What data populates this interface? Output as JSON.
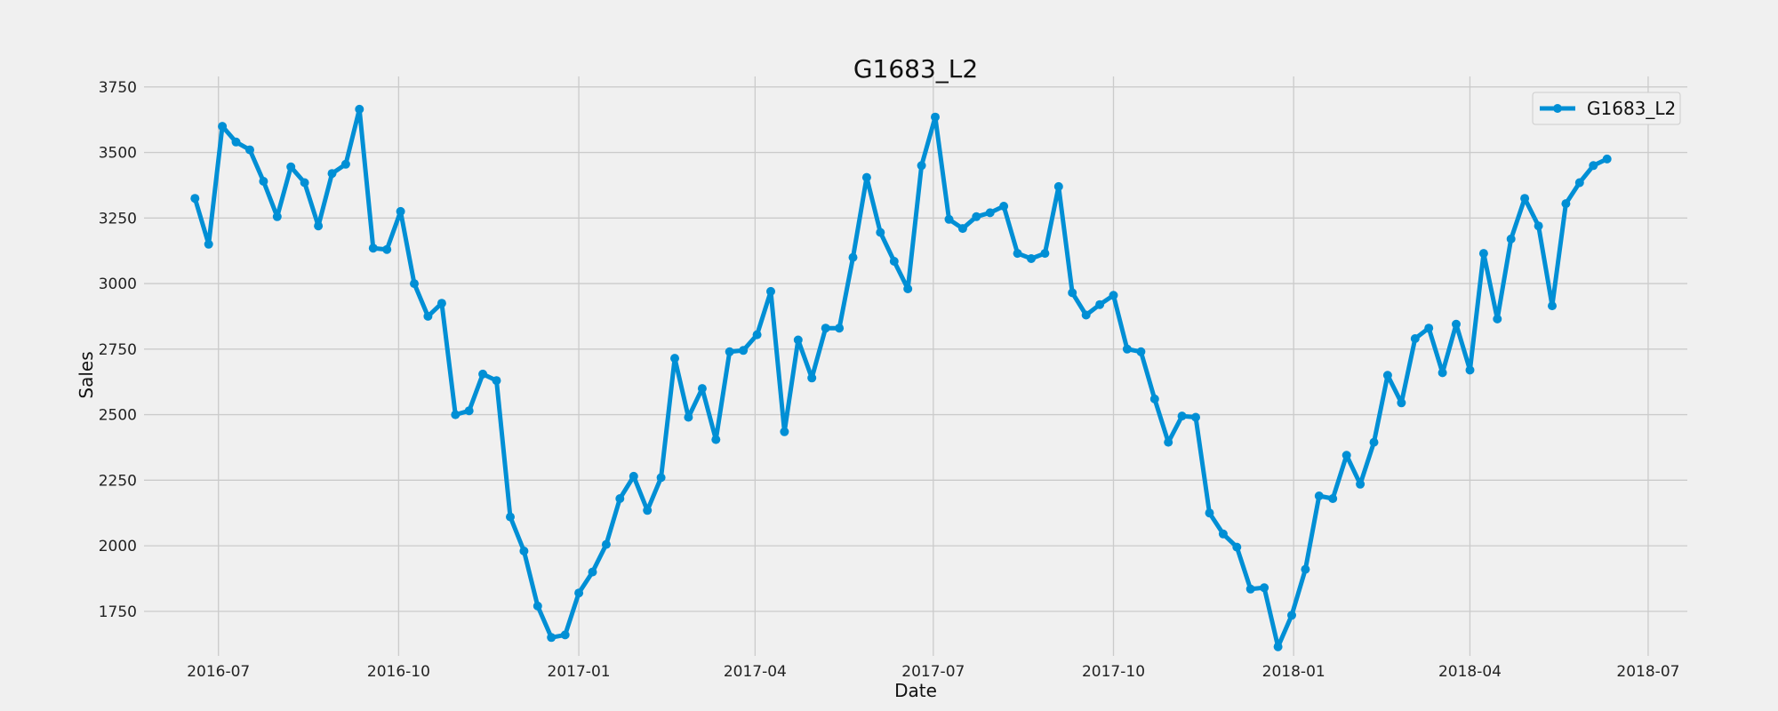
{
  "chart_data": {
    "type": "line",
    "title": "G1683_L2",
    "xlabel": "Date",
    "ylabel": "Sales",
    "legend_position": "top-right",
    "grid": true,
    "ylim": [
      1580,
      3790
    ],
    "xlim": [
      "2016-05-24",
      "2018-07-21"
    ],
    "x_ticks": [
      "2016-07-01",
      "2016-10-01",
      "2017-01-01",
      "2017-04-01",
      "2017-07-01",
      "2017-10-01",
      "2018-01-01",
      "2018-04-01",
      "2018-07-01"
    ],
    "x_tick_labels": [
      "2016-07",
      "2016-10",
      "2017-01",
      "2017-04",
      "2017-07",
      "2017-10",
      "2018-01",
      "2018-04",
      "2018-07"
    ],
    "y_ticks": [
      1750,
      2000,
      2250,
      2500,
      2750,
      3000,
      3250,
      3500,
      3750
    ],
    "series": [
      {
        "name": "G1683_L2",
        "color": "#008fd5",
        "x": [
          "2016-06-19",
          "2016-06-26",
          "2016-07-03",
          "2016-07-10",
          "2016-07-17",
          "2016-07-24",
          "2016-07-31",
          "2016-08-07",
          "2016-08-14",
          "2016-08-21",
          "2016-08-28",
          "2016-09-04",
          "2016-09-11",
          "2016-09-18",
          "2016-09-25",
          "2016-10-02",
          "2016-10-09",
          "2016-10-16",
          "2016-10-23",
          "2016-10-30",
          "2016-11-06",
          "2016-11-13",
          "2016-11-20",
          "2016-11-27",
          "2016-12-04",
          "2016-12-11",
          "2016-12-18",
          "2016-12-25",
          "2017-01-01",
          "2017-01-08",
          "2017-01-15",
          "2017-01-22",
          "2017-01-29",
          "2017-02-05",
          "2017-02-12",
          "2017-02-19",
          "2017-02-26",
          "2017-03-05",
          "2017-03-12",
          "2017-03-19",
          "2017-03-26",
          "2017-04-02",
          "2017-04-09",
          "2017-04-16",
          "2017-04-23",
          "2017-04-30",
          "2017-05-07",
          "2017-05-14",
          "2017-05-21",
          "2017-05-28",
          "2017-06-04",
          "2017-06-11",
          "2017-06-18",
          "2017-06-25",
          "2017-07-02",
          "2017-07-09",
          "2017-07-16",
          "2017-07-23",
          "2017-07-30",
          "2017-08-06",
          "2017-08-13",
          "2017-08-20",
          "2017-08-27",
          "2017-09-03",
          "2017-09-10",
          "2017-09-17",
          "2017-09-24",
          "2017-10-01",
          "2017-10-08",
          "2017-10-15",
          "2017-10-22",
          "2017-10-29",
          "2017-11-05",
          "2017-11-12",
          "2017-11-19",
          "2017-11-26",
          "2017-12-03",
          "2017-12-10",
          "2017-12-17",
          "2017-12-24",
          "2017-12-31",
          "2018-01-07",
          "2018-01-14",
          "2018-01-21",
          "2018-01-28",
          "2018-02-04",
          "2018-02-11",
          "2018-02-18",
          "2018-02-25",
          "2018-03-04",
          "2018-03-11",
          "2018-03-18",
          "2018-03-25",
          "2018-04-01",
          "2018-04-08",
          "2018-04-15",
          "2018-04-22",
          "2018-04-29",
          "2018-05-06",
          "2018-05-13",
          "2018-05-20",
          "2018-05-27",
          "2018-06-03",
          "2018-06-10"
        ],
        "values": [
          3325,
          3150,
          3600,
          3540,
          3510,
          3390,
          3255,
          3445,
          3385,
          3220,
          3420,
          3455,
          3665,
          3135,
          3130,
          3275,
          3000,
          2875,
          2925,
          2500,
          2515,
          2655,
          2630,
          2110,
          1980,
          1770,
          1650,
          1660,
          1820,
          1900,
          2005,
          2180,
          2265,
          2135,
          2260,
          2715,
          2490,
          2600,
          2405,
          2740,
          2745,
          2805,
          2970,
          2435,
          2785,
          2640,
          2830,
          2830,
          3100,
          3405,
          3195,
          3085,
          2980,
          3450,
          3635,
          3245,
          3210,
          3255,
          3270,
          3295,
          3115,
          3095,
          3115,
          3370,
          2965,
          2880,
          2920,
          2955,
          2750,
          2740,
          2560,
          2395,
          2495,
          2490,
          2125,
          2045,
          1995,
          1835,
          1840,
          1615,
          1735,
          1910,
          2190,
          2180,
          2345,
          2235,
          2395,
          2650,
          2545,
          2790,
          2830,
          2660,
          2845,
          2670,
          3115,
          2865,
          3170,
          3325,
          3220,
          2915,
          3305,
          3385,
          3450,
          3475
        ]
      }
    ]
  }
}
